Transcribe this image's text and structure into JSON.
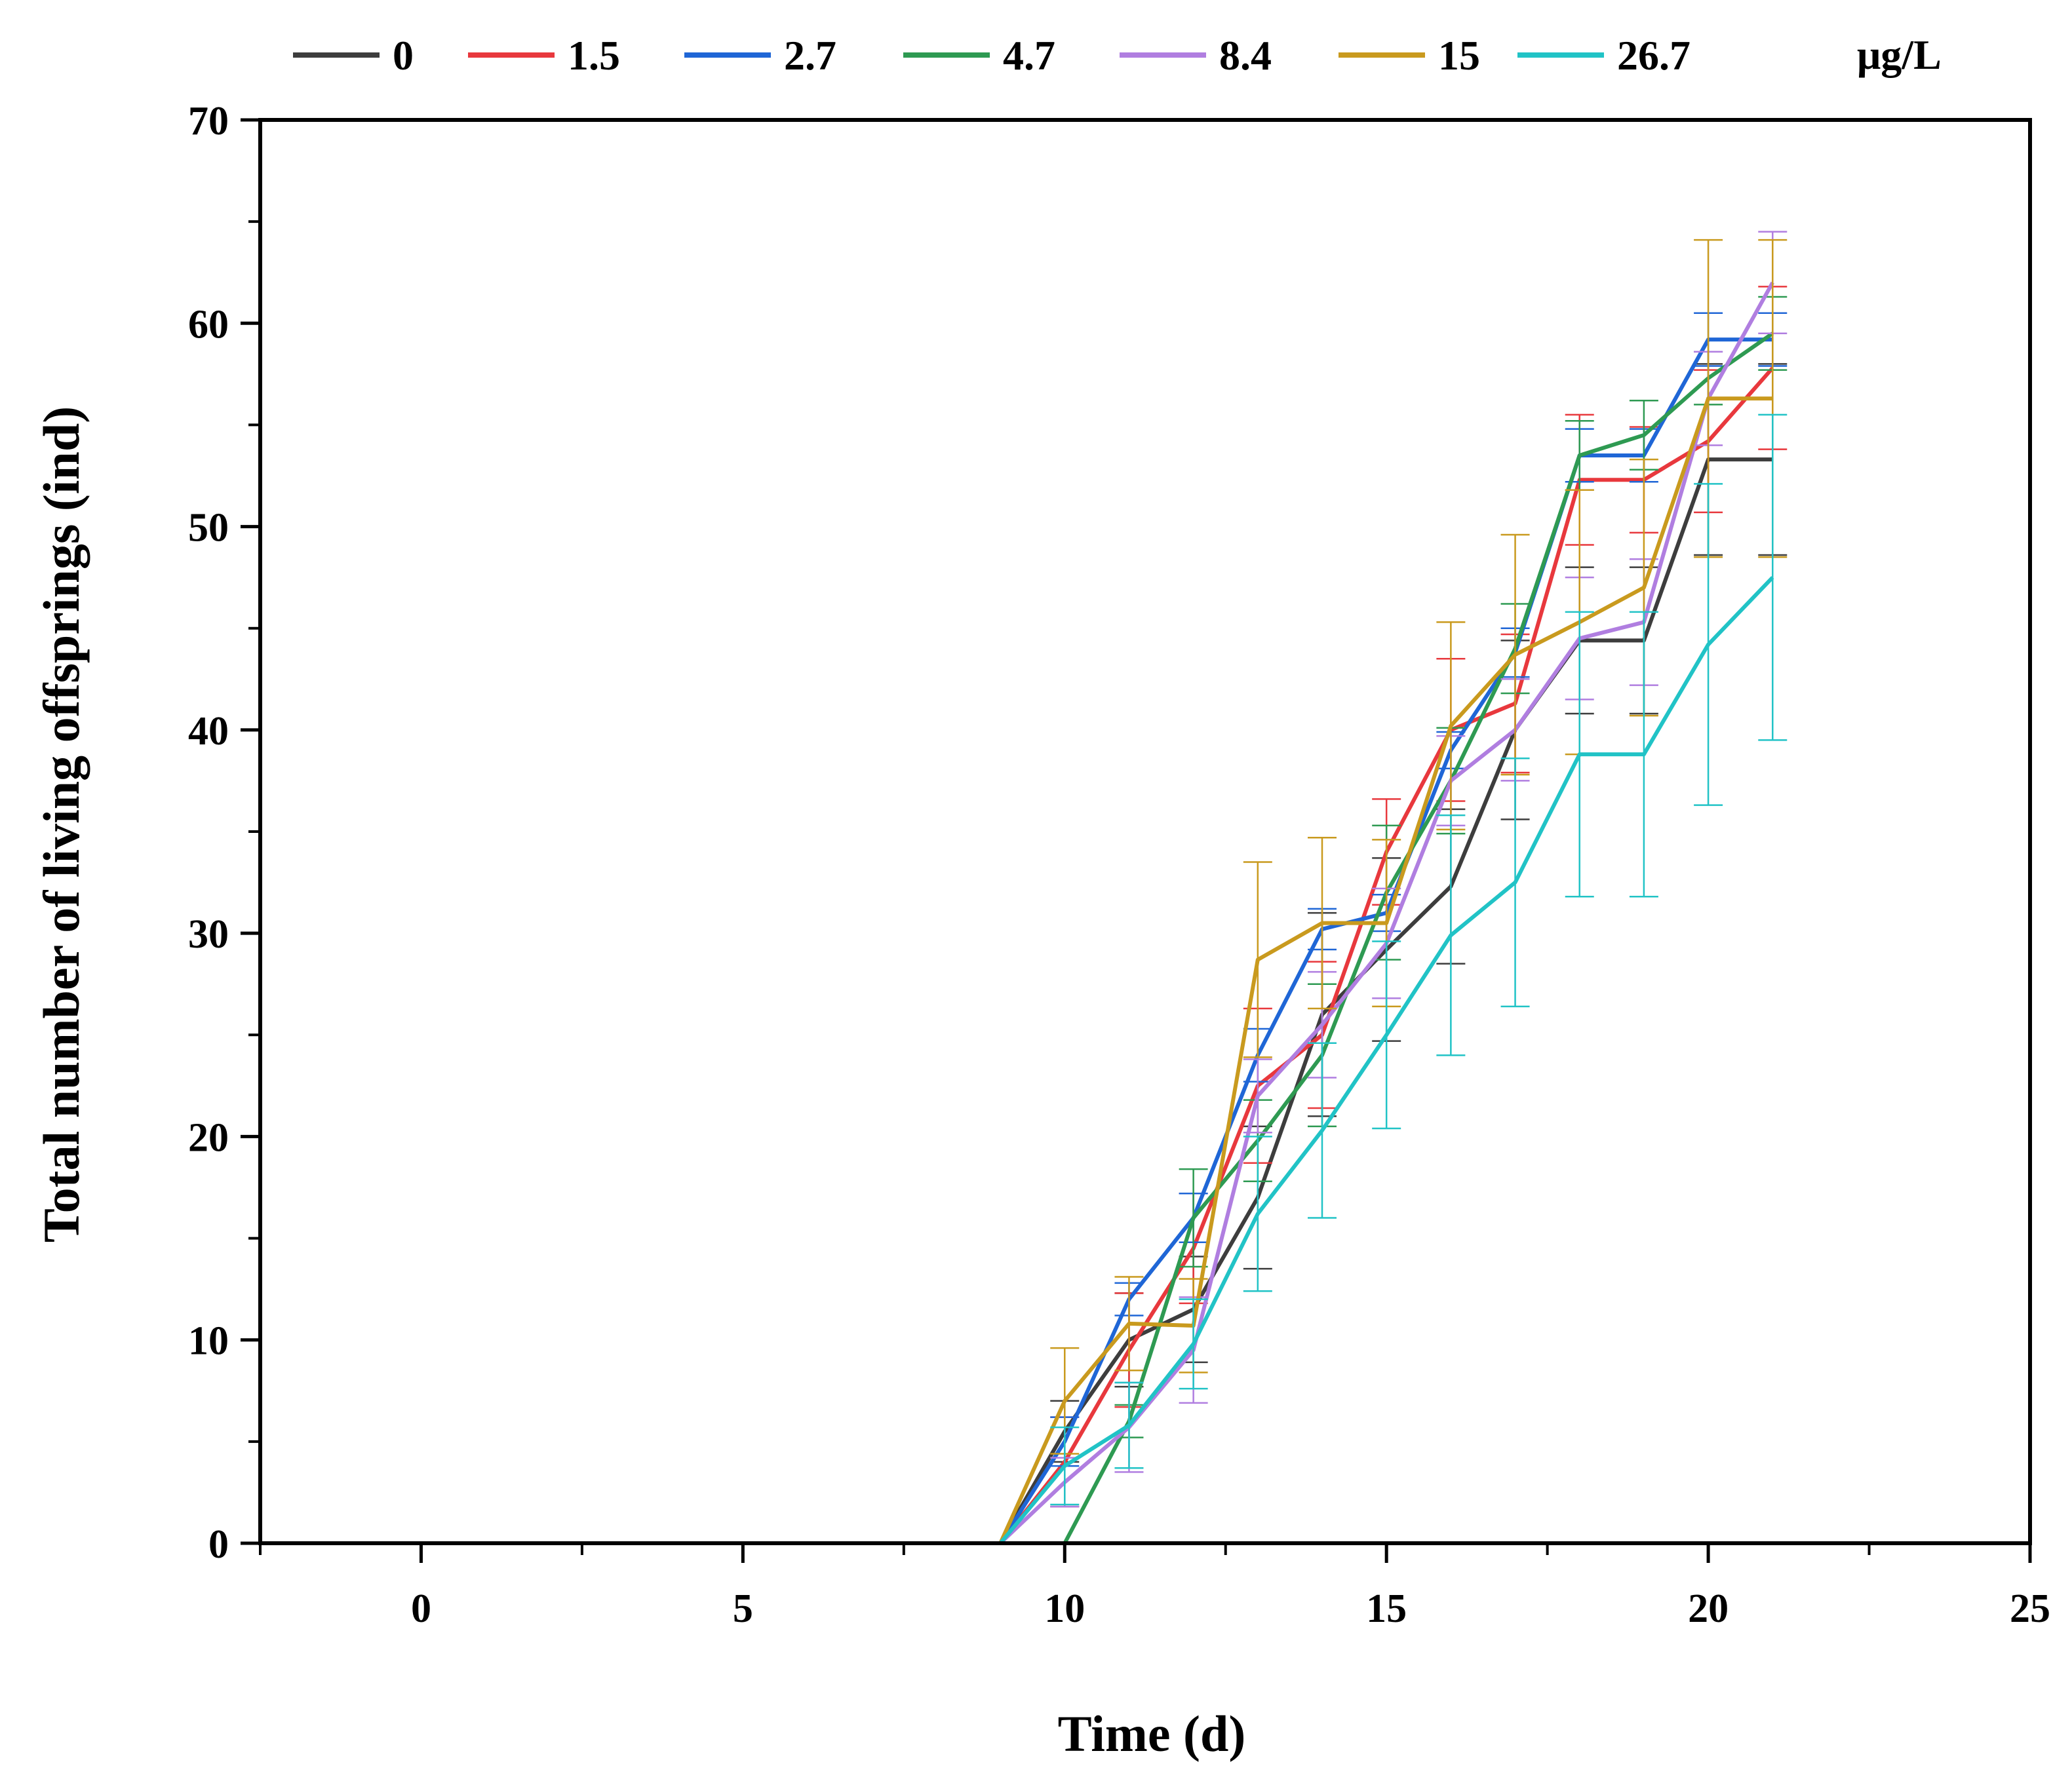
{
  "chart_data": {
    "type": "line",
    "title": "",
    "xlabel": "Time (d)",
    "ylabel": "Total number of living offsprings (ind)",
    "xlim": [
      -2.5,
      25
    ],
    "ylim": [
      0,
      70
    ],
    "xticks": [
      0,
      5,
      10,
      15,
      20,
      25
    ],
    "yticks": [
      0,
      10,
      20,
      30,
      40,
      50,
      60,
      70
    ],
    "grid": false,
    "legend_position": "top",
    "legend_unit": "μg/L",
    "x": [
      1,
      2,
      3,
      4,
      5,
      6,
      7,
      8,
      9,
      10,
      11,
      12,
      13,
      14,
      15,
      16,
      17,
      18,
      19,
      20,
      21
    ],
    "series": [
      {
        "name": "0",
        "color": "#3d3d3d",
        "values": [
          0,
          0,
          0,
          0,
          0,
          0,
          0,
          0,
          0,
          5.5,
          10,
          11.5,
          17,
          26,
          29.2,
          32.3,
          40,
          44.4,
          44.4,
          53.3,
          53.3
        ],
        "errors": [
          0,
          0,
          0,
          0,
          0,
          0,
          0,
          0,
          0,
          1.5,
          2.3,
          2.6,
          3.5,
          5,
          4.5,
          3.8,
          4.4,
          3.6,
          3.6,
          4.7,
          4.7
        ]
      },
      {
        "name": "1.5",
        "color": "#e8383d",
        "values": [
          0,
          0,
          0,
          0,
          0,
          0,
          0,
          0,
          0,
          4,
          9.5,
          14.5,
          22.5,
          25,
          34,
          40,
          41.3,
          52.3,
          52.3,
          54.2,
          57.8
        ],
        "errors": [
          0,
          0,
          0,
          0,
          0,
          0,
          0,
          0,
          0,
          2.2,
          2.8,
          2.7,
          3.8,
          3.6,
          2.6,
          3.5,
          3.4,
          3.2,
          2.6,
          3.5,
          4
        ]
      },
      {
        "name": "2.7",
        "color": "#1f66d6",
        "values": [
          0,
          0,
          0,
          0,
          0,
          0,
          0,
          0,
          0,
          5,
          12,
          16,
          24,
          30.2,
          31,
          39,
          43.8,
          53.5,
          53.5,
          59.2,
          59.2
        ],
        "errors": [
          0,
          0,
          0,
          0,
          0,
          0,
          0,
          0,
          0,
          1.2,
          0.8,
          1.2,
          1.3,
          1,
          0.9,
          0.9,
          1.2,
          1.3,
          1.3,
          1.3,
          1.3
        ]
      },
      {
        "name": "4.7",
        "color": "#2e9a52",
        "values": [
          0,
          0,
          0,
          0,
          0,
          0,
          0,
          0,
          0,
          0,
          6,
          16,
          19.8,
          24,
          32,
          37.5,
          44,
          53.5,
          54.5,
          57.3,
          59.5
        ],
        "errors": [
          0,
          0,
          0,
          0,
          0,
          0,
          0,
          0,
          0,
          0,
          0.8,
          2.4,
          2,
          3.5,
          3.3,
          2.6,
          2.2,
          1.7,
          1.7,
          1.3,
          1.8
        ]
      },
      {
        "name": "8.4",
        "color": "#b07ee0",
        "values": [
          0,
          0,
          0,
          0,
          0,
          0,
          0,
          0,
          0,
          3,
          5.7,
          9.5,
          22,
          25.5,
          29.5,
          37.5,
          40,
          44.5,
          45.3,
          56.3,
          62
        ],
        "errors": [
          0,
          0,
          0,
          0,
          0,
          0,
          0,
          0,
          0,
          1.2,
          2.2,
          2.6,
          1.8,
          2.6,
          2.7,
          2.2,
          2.5,
          3,
          3.1,
          2.3,
          2.5
        ]
      },
      {
        "name": "15",
        "color": "#c99a1e",
        "values": [
          0,
          0,
          0,
          0,
          0,
          0,
          0,
          0,
          0,
          7,
          10.8,
          10.7,
          28.7,
          30.5,
          30.5,
          40.2,
          43.7,
          45.3,
          47,
          56.3,
          56.3
        ],
        "errors": [
          0,
          0,
          0,
          0,
          0,
          0,
          0,
          0,
          0,
          2.6,
          2.3,
          2.3,
          4.8,
          4.2,
          4.1,
          5.1,
          5.9,
          6.5,
          6.3,
          7.8,
          7.8
        ]
      },
      {
        "name": "26.7",
        "color": "#21c3c6",
        "values": [
          0,
          0,
          0,
          0,
          0,
          0,
          0,
          0,
          0,
          3.8,
          5.8,
          9.8,
          16.2,
          20.3,
          25,
          29.9,
          32.5,
          38.8,
          38.8,
          44.2,
          47.5
        ],
        "errors": [
          0,
          0,
          0,
          0,
          0,
          0,
          0,
          0,
          0,
          1.9,
          2.1,
          2.2,
          3.8,
          4.3,
          4.6,
          5.9,
          6.1,
          7,
          7,
          7.9,
          8
        ]
      }
    ]
  }
}
